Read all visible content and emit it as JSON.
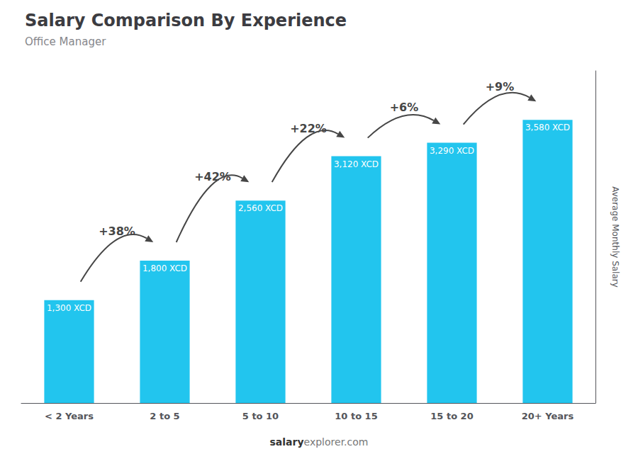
{
  "chart_data": {
    "type": "bar",
    "title": "Salary Comparison By Experience",
    "subtitle": "Office Manager",
    "ylabel": "Average Monthly Salary",
    "footer": [
      "salary",
      "explorer.com"
    ],
    "categories": [
      "< 2 Years",
      "2 to 5",
      "5 to 10",
      "10 to 15",
      "15 to 20",
      "20+ Years"
    ],
    "values": [
      1300,
      1800,
      2560,
      3120,
      3290,
      3580
    ],
    "value_labels": [
      "1,300 XCD",
      "1,800 XCD",
      "2,560 XCD",
      "3,120 XCD",
      "3,290 XCD",
      "3,580 XCD"
    ],
    "data_labels": true,
    "annotations": [
      "+38%",
      "+42%",
      "+22%",
      "+6%",
      "+9%"
    ],
    "color": "#22C5EE",
    "ylim": [
      0,
      4200
    ],
    "tick_labels": "x",
    "grid": false
  }
}
